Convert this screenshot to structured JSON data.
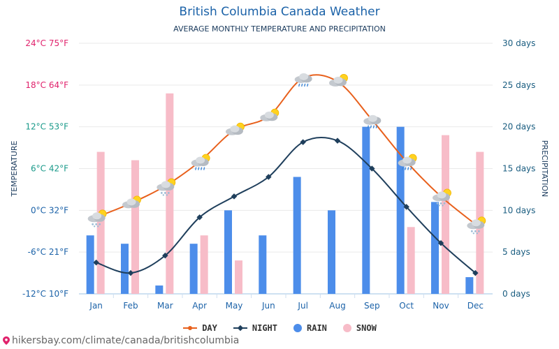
{
  "title": "British Columbia Canada Weather",
  "subtitle": "AVERAGE MONTHLY TEMPERATURE AND PRECIPITATION",
  "footer": "hikersbay.com/climate/canada/britishcolumbia",
  "colors": {
    "day": "#e8601c",
    "night": "#1f3f5c",
    "rain": "#4c8dea",
    "snow": "#f7bcc8",
    "left_axis_warm": "#e0226c",
    "left_axis_cool": "#1a9a8a",
    "left_axis_cold": "#1b62a8",
    "right_axis": "#1a5d80"
  },
  "legend": [
    {
      "key": "day",
      "label": "DAY",
      "marker": "line-dot"
    },
    {
      "key": "night",
      "label": "NIGHT",
      "marker": "line-diamond"
    },
    {
      "key": "rain",
      "label": "RAIN",
      "marker": "circle"
    },
    {
      "key": "snow",
      "label": "SNOW",
      "marker": "circle"
    }
  ],
  "chart_data": {
    "type": "bar",
    "categories": [
      "Jan",
      "Feb",
      "Mar",
      "Apr",
      "May",
      "Jun",
      "Jul",
      "Aug",
      "Sep",
      "Oct",
      "Nov",
      "Dec"
    ],
    "left_axis": {
      "label": "TEMPERATURE",
      "ylim": [
        -12,
        24
      ],
      "ticks": [
        {
          "value": 24,
          "label": "24°C 75°F"
        },
        {
          "value": 18,
          "label": "18°C 64°F"
        },
        {
          "value": 12,
          "label": "12°C 53°F"
        },
        {
          "value": 6,
          "label": "6°C 42°F"
        },
        {
          "value": 0,
          "label": "0°C 32°F"
        },
        {
          "value": -6,
          "label": "-6°C 21°F"
        },
        {
          "value": -12,
          "label": "-12°C 10°F"
        }
      ]
    },
    "right_axis": {
      "label": "PRECIPITATION",
      "ylim": [
        0,
        30
      ],
      "ticks": [
        {
          "value": 30,
          "label": "30 days"
        },
        {
          "value": 25,
          "label": "25 days"
        },
        {
          "value": 20,
          "label": "20 days"
        },
        {
          "value": 15,
          "label": "15 days"
        },
        {
          "value": 10,
          "label": "10 days"
        },
        {
          "value": 5,
          "label": "5 days"
        },
        {
          "value": 0,
          "label": "0 days"
        }
      ]
    },
    "series": [
      {
        "name": "DAY",
        "type": "line",
        "axis": "left",
        "values": [
          -1,
          1,
          3.5,
          7,
          11.5,
          13.5,
          19,
          18.5,
          13,
          7,
          2,
          -2
        ],
        "icons": [
          "snow-sun",
          "sun-cloud",
          "snow-sun",
          "rain-sun",
          "sun-cloud",
          "sun-cloud",
          "rain-cloud",
          "sun-cloud",
          "rain-cloud",
          "rain-sun",
          "snow-sun",
          "snow-sun"
        ]
      },
      {
        "name": "NIGHT",
        "type": "line",
        "axis": "left",
        "values": [
          -7.5,
          -9,
          -6.5,
          -1,
          2,
          4.8,
          9.8,
          10,
          6,
          0.5,
          -4.7,
          -9
        ]
      },
      {
        "name": "RAIN",
        "type": "bar",
        "axis": "right",
        "values": [
          7,
          6,
          1,
          6,
          10,
          7,
          14,
          10,
          20,
          20,
          11,
          2
        ]
      },
      {
        "name": "SNOW",
        "type": "bar",
        "axis": "right",
        "values": [
          17,
          16,
          24,
          7,
          4,
          0,
          0,
          0,
          0,
          8,
          19,
          17
        ]
      }
    ]
  }
}
